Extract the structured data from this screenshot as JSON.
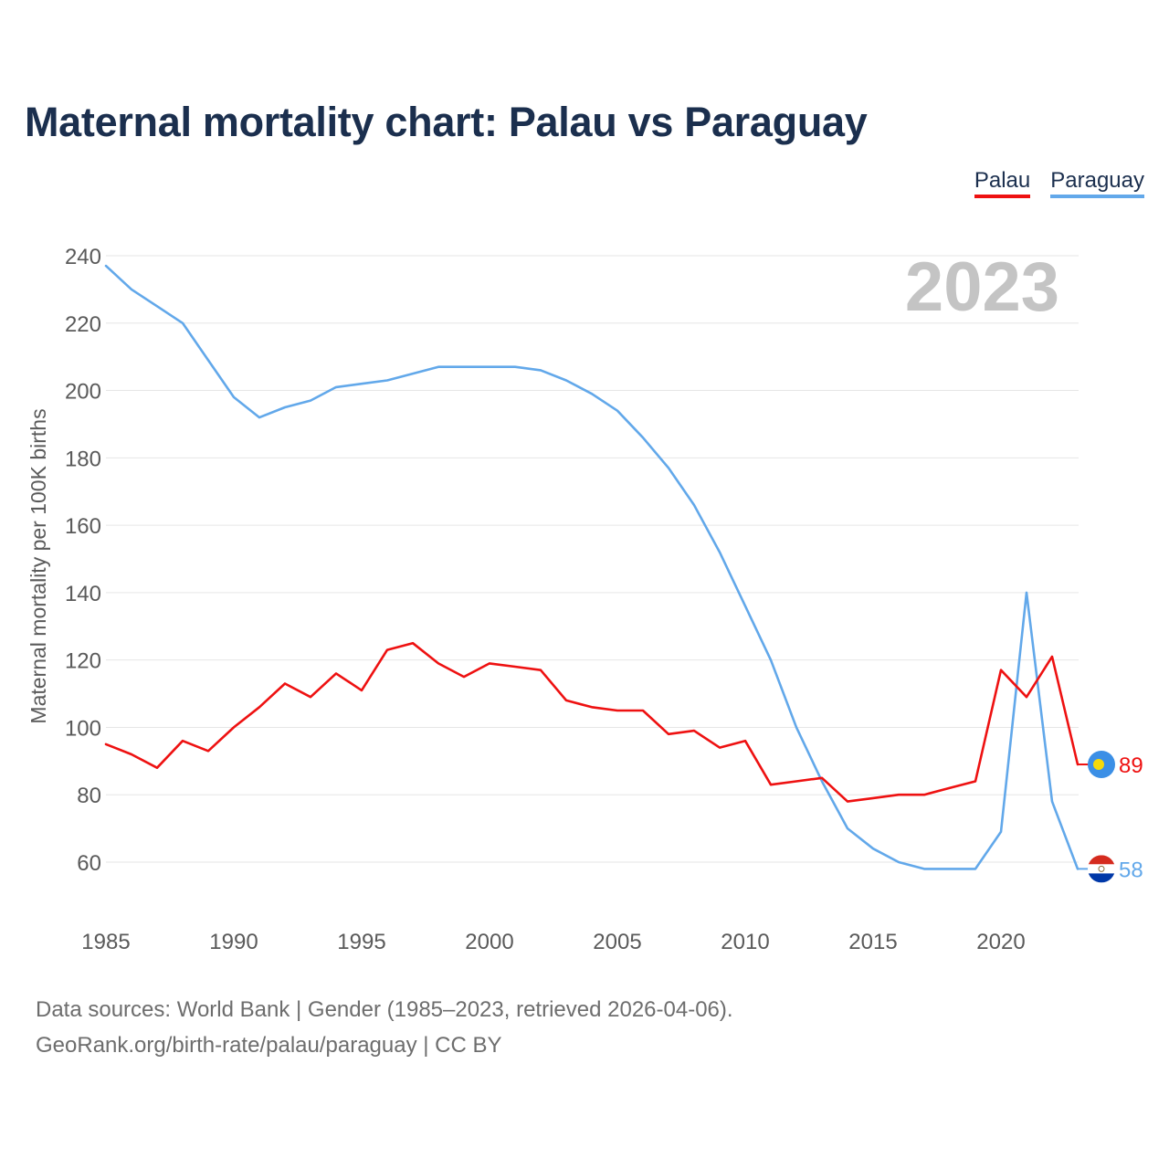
{
  "title": "Maternal mortality chart: Palau vs Paraguay",
  "year_label": "2023",
  "footer": {
    "line1": "Data sources: World Bank | Gender (1985–2023, retrieved 2026-04-06).",
    "line2": "GeoRank.org/birth-rate/palau/paraguay | CC BY"
  },
  "colors": {
    "palau": "#ee1111",
    "paraguay": "#62a8ea",
    "title": "#1b2f4e",
    "grid": "#e6e6e6",
    "tick_text": "#5a5a5a",
    "year_text": "#c4c4c4"
  },
  "chart_data": {
    "type": "line",
    "title": "Maternal mortality chart: Palau vs Paraguay",
    "xlabel": "",
    "ylabel": "Maternal mortality per 100K births",
    "xlim": [
      1985,
      2023
    ],
    "ylim": [
      50,
      240
    ],
    "x_ticks": [
      1985,
      1990,
      1995,
      2000,
      2005,
      2010,
      2015,
      2020
    ],
    "y_ticks": [
      60,
      80,
      100,
      120,
      140,
      160,
      180,
      200,
      220,
      240
    ],
    "grid": true,
    "legend": "top-right",
    "x": [
      1985,
      1986,
      1987,
      1988,
      1989,
      1990,
      1991,
      1992,
      1993,
      1994,
      1995,
      1996,
      1997,
      1998,
      1999,
      2000,
      2001,
      2002,
      2003,
      2004,
      2005,
      2006,
      2007,
      2008,
      2009,
      2010,
      2011,
      2012,
      2013,
      2014,
      2015,
      2016,
      2017,
      2018,
      2019,
      2020,
      2021,
      2022,
      2023
    ],
    "series": [
      {
        "name": "Palau",
        "color": "#ee1111",
        "flag": "palau-flag",
        "end_label": "89",
        "values": [
          95,
          92,
          88,
          96,
          93,
          100,
          106,
          113,
          109,
          116,
          111,
          123,
          125,
          119,
          115,
          119,
          118,
          117,
          108,
          106,
          105,
          105,
          98,
          99,
          94,
          96,
          83,
          84,
          85,
          78,
          79,
          80,
          80,
          82,
          84,
          117,
          109,
          121,
          89
        ]
      },
      {
        "name": "Paraguay",
        "color": "#62a8ea",
        "flag": "paraguay-flag",
        "end_label": "58",
        "values": [
          237,
          230,
          225,
          220,
          209,
          198,
          192,
          195,
          197,
          201,
          202,
          203,
          205,
          207,
          207,
          207,
          207,
          206,
          203,
          199,
          194,
          186,
          177,
          166,
          152,
          136,
          120,
          100,
          84,
          70,
          64,
          60,
          58,
          58,
          58,
          69,
          140,
          78,
          58
        ]
      }
    ]
  }
}
